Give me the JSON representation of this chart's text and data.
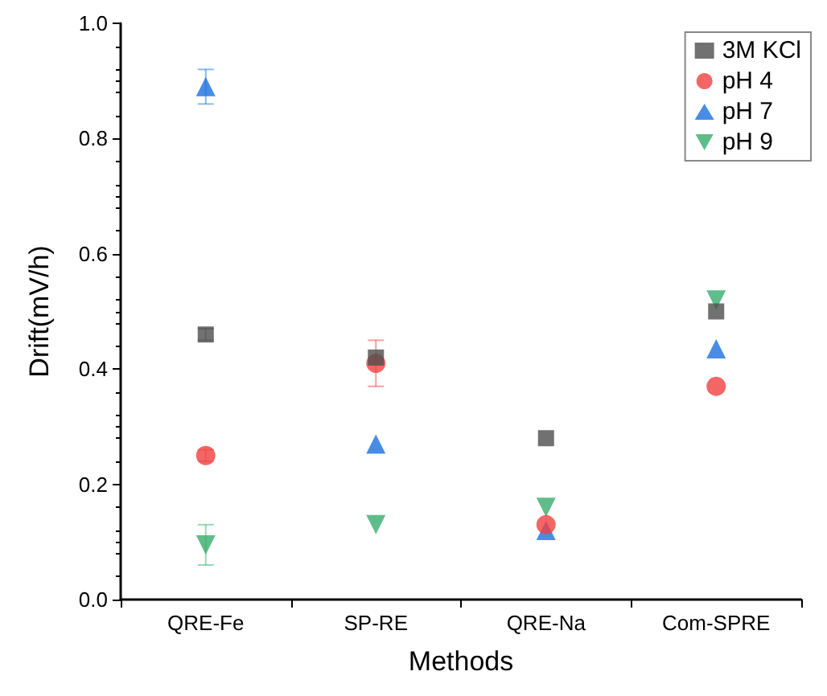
{
  "chart_data": {
    "type": "scatter",
    "xlabel": "Methods",
    "ylabel": "Drift(mV/h)",
    "categories": [
      "QRE-Fe",
      "SP-RE",
      "QRE-Na",
      "Com-SPRE"
    ],
    "series": [
      {
        "name": "3M KCl",
        "color": "#4d4d4d",
        "marker": "square",
        "values": [
          0.46,
          0.42,
          0.28,
          0.5
        ],
        "errors": [
          0.01,
          null,
          null,
          null
        ]
      },
      {
        "name": "pH 4",
        "color": "#f14040",
        "marker": "circle",
        "values": [
          0.25,
          0.41,
          0.13,
          0.37
        ],
        "errors": [
          0.01,
          0.04,
          null,
          null
        ]
      },
      {
        "name": "pH 7",
        "color": "#1a6fdf",
        "marker": "triangle",
        "values": [
          0.89,
          0.27,
          0.12,
          0.435
        ],
        "errors": [
          0.03,
          null,
          null,
          null
        ]
      },
      {
        "name": "pH 9",
        "color": "#37ad6b",
        "marker": "triangle-down",
        "values": [
          0.095,
          0.13,
          0.16,
          0.52
        ],
        "errors": [
          0.035,
          null,
          null,
          null
        ]
      }
    ],
    "ylim": [
      0,
      1
    ],
    "yticks": [
      {
        "value": 0,
        "label": "0.0"
      },
      0.2,
      0.4,
      0.6,
      0.8,
      {
        "value": 1,
        "label": "1.0"
      }
    ],
    "grid": false,
    "legend": "top right"
  }
}
